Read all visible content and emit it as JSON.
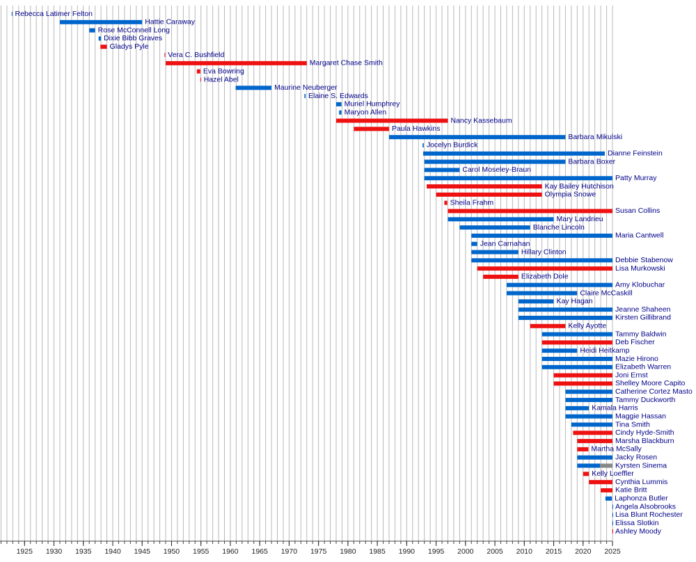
{
  "chart_data": {
    "type": "timeline",
    "categories": [
      "Rebecca Latimer Felton",
      "Hattie Caraway",
      "Rose McConnell Long",
      "Dixie Bibb Graves",
      "Gladys Pyle",
      "Vera C. Bushfield",
      "Margaret Chase Smith",
      "Eva Bowring",
      "Hazel Abel",
      "Maurine Neuberger",
      "Elaine S. Edwards",
      "Muriel Humphrey",
      "Maryon Allen",
      "Nancy Kassebaum",
      "Paula Hawkins",
      "Barbara Mikulski",
      "Jocelyn Burdick",
      "Dianne Feinstein",
      "Barbara Boxer",
      "Carol Moseley-Braun",
      "Patty Murray",
      "Kay Bailey Hutchison",
      "Olympia Snowe",
      "Sheila Frahm",
      "Susan Collins",
      "Mary Landrieu",
      "Blanche Lincoln",
      "Maria Cantwell",
      "Jean Carnahan",
      "Hillary Clinton",
      "Debbie Stabenow",
      "Lisa Murkowski",
      "Elizabeth Dole",
      "Amy Klobuchar",
      "Claire McCaskill",
      "Kay Hagan",
      "Jeanne Shaheen",
      "Kirsten Gillibrand",
      "Kelly Ayotte",
      "Tammy Baldwin",
      "Deb Fischer",
      "Heidi Heitkamp",
      "Mazie Hirono",
      "Elizabeth Warren",
      "Joni Ernst",
      "Shelley Moore Capito",
      "Catherine Cortez Masto",
      "Tammy Duckworth",
      "Kamala Harris",
      "Maggie Hassan",
      "Tina Smith",
      "Cindy Hyde-Smith",
      "Marsha Blackburn",
      "Martha McSally",
      "Jacky Rosen",
      "Kyrsten Sinema",
      "Kelly Loeffler",
      "Cynthia Lummis",
      "Katie Britt",
      "Laphonza Butler",
      "Angela Alsobrooks",
      "Lisa Blunt Rochester",
      "Elissa Slotkin",
      "Ashley Moody"
    ],
    "series": [
      {
        "color": "#0066cc",
        "start": [
          1922.8,
          1931,
          1936,
          1937.6,
          null,
          null,
          null,
          null,
          null,
          1960.9,
          1972.6,
          1978,
          1978.5,
          null,
          null,
          1987,
          1992.7,
          1992.8,
          1993,
          1993,
          1993,
          null,
          null,
          null,
          null,
          1997,
          1999,
          2001,
          2001,
          2001,
          2001,
          null,
          null,
          2007,
          2007,
          2009,
          2009,
          2009,
          null,
          2013,
          null,
          2013,
          2013,
          2013,
          null,
          null,
          2017,
          2017,
          2017,
          2017,
          2018,
          null,
          null,
          null,
          2019,
          2019,
          null,
          null,
          null,
          2023.8,
          2025,
          2025,
          2025,
          null
        ],
        "end": [
          1922.9,
          1945,
          1937,
          1938,
          null,
          null,
          null,
          null,
          null,
          1967,
          1972.8,
          1978.9,
          1978.9,
          null,
          null,
          2017,
          1992.9,
          2023.7,
          2017,
          1999,
          2025,
          null,
          null,
          null,
          null,
          2015,
          2011,
          2025,
          2002,
          2009,
          2025,
          null,
          null,
          2025,
          2019,
          2015,
          2025,
          2025,
          null,
          2025,
          null,
          2019,
          2025,
          2025,
          null,
          null,
          2025,
          2025,
          2021,
          2025,
          2025,
          null,
          null,
          null,
          2025,
          2022.9,
          null,
          null,
          null,
          2024.9,
          2025,
          2025,
          2025,
          null
        ]
      },
      {
        "color": "#ee1111",
        "start": [
          null,
          null,
          null,
          null,
          1937.9,
          1948.8,
          1949,
          1954.3,
          1954.9,
          null,
          null,
          null,
          null,
          1978,
          1981,
          null,
          null,
          null,
          null,
          null,
          null,
          1993.4,
          1995,
          1996.4,
          1997,
          null,
          null,
          null,
          null,
          null,
          null,
          2002,
          2003,
          null,
          null,
          null,
          null,
          null,
          2011,
          null,
          2013,
          null,
          null,
          null,
          2015,
          2015,
          null,
          null,
          null,
          null,
          null,
          2018.3,
          2019,
          2019,
          null,
          null,
          2020,
          2021,
          2023,
          null,
          null,
          null,
          null,
          2025
        ],
        "end": [
          null,
          null,
          null,
          null,
          1939,
          1948.9,
          1973,
          1954.9,
          1955,
          null,
          null,
          null,
          null,
          1997,
          1987,
          null,
          null,
          null,
          null,
          null,
          null,
          2013,
          2013,
          1996.9,
          2025,
          null,
          null,
          null,
          null,
          null,
          null,
          2025,
          2009,
          null,
          null,
          null,
          null,
          null,
          2017,
          null,
          2025,
          null,
          null,
          null,
          2025,
          2025,
          null,
          null,
          null,
          null,
          null,
          2025,
          2025,
          2020.9,
          null,
          null,
          2021,
          2025,
          2025,
          null,
          null,
          null,
          null,
          2025
        ]
      },
      {
        "color": "#888888",
        "start": [
          null,
          null,
          null,
          null,
          null,
          null,
          null,
          null,
          null,
          null,
          null,
          null,
          null,
          null,
          null,
          null,
          null,
          null,
          null,
          null,
          null,
          null,
          null,
          null,
          null,
          null,
          null,
          null,
          null,
          null,
          null,
          null,
          null,
          null,
          null,
          null,
          null,
          null,
          null,
          null,
          null,
          null,
          null,
          null,
          null,
          null,
          null,
          null,
          null,
          null,
          null,
          null,
          null,
          null,
          null,
          2022.9,
          null,
          null,
          null,
          null,
          null,
          null,
          null,
          null
        ],
        "end": [
          null,
          null,
          null,
          null,
          null,
          null,
          null,
          null,
          null,
          null,
          null,
          null,
          null,
          null,
          null,
          null,
          null,
          null,
          null,
          null,
          null,
          null,
          null,
          null,
          null,
          null,
          null,
          null,
          null,
          null,
          null,
          null,
          null,
          null,
          null,
          null,
          null,
          null,
          null,
          null,
          null,
          null,
          null,
          null,
          null,
          null,
          null,
          null,
          null,
          null,
          null,
          null,
          null,
          null,
          null,
          2025,
          null,
          null,
          null,
          null,
          null,
          null,
          null,
          null
        ]
      }
    ],
    "xlim": [
      1921,
      2025
    ],
    "xticks": [
      1925,
      1930,
      1935,
      1940,
      1945,
      1950,
      1955,
      1960,
      1965,
      1970,
      1975,
      1980,
      1985,
      1990,
      1995,
      2000,
      2005,
      2010,
      2015,
      2020,
      2025
    ],
    "xminorticks": [
      1921,
      1922,
      1923,
      1924,
      1925,
      1926,
      1927,
      1928,
      1929,
      1930,
      1931,
      1932,
      1933,
      1934,
      1935,
      1936,
      1937,
      1938,
      1939,
      1940,
      1941,
      1942,
      1943,
      1944,
      1945,
      1946,
      1947,
      1948,
      1949,
      1950,
      1951,
      1952,
      1953,
      1954,
      1955,
      1956,
      1957,
      1958,
      1959,
      1960,
      1961,
      1962,
      1963,
      1964,
      1965,
      1966,
      1967,
      1968,
      1969,
      1970,
      1971,
      1972,
      1973,
      1974,
      1975,
      1976,
      1977,
      1978,
      1979,
      1980,
      1981,
      1982,
      1983,
      1984,
      1985,
      1986,
      1987,
      1988,
      1989,
      1990,
      1991,
      1992,
      1993,
      1994,
      1995,
      1996,
      1997,
      1998,
      1999,
      2000,
      2001,
      2002,
      2003,
      2004,
      2005,
      2006,
      2007,
      2008,
      2009,
      2010,
      2011,
      2012,
      2013,
      2014,
      2015,
      2016,
      2017,
      2018,
      2019,
      2020,
      2021,
      2022,
      2023,
      2024,
      2025
    ],
    "grid": true
  }
}
